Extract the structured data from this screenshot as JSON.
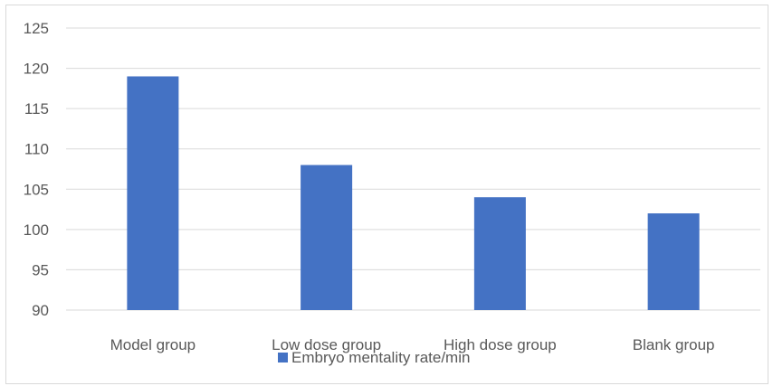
{
  "chart_data": {
    "type": "bar",
    "categories": [
      "Model group",
      "Low dose group",
      "High dose group",
      "Blank group"
    ],
    "series": [
      {
        "name": "Embryo mentality rate/min",
        "values": [
          119,
          108,
          104,
          102
        ],
        "color": "#4472c4"
      }
    ],
    "ylim": [
      90,
      125
    ],
    "yticks": [
      90,
      95,
      100,
      105,
      110,
      115,
      120,
      125
    ],
    "grid": true,
    "legend_position": "bottom"
  }
}
